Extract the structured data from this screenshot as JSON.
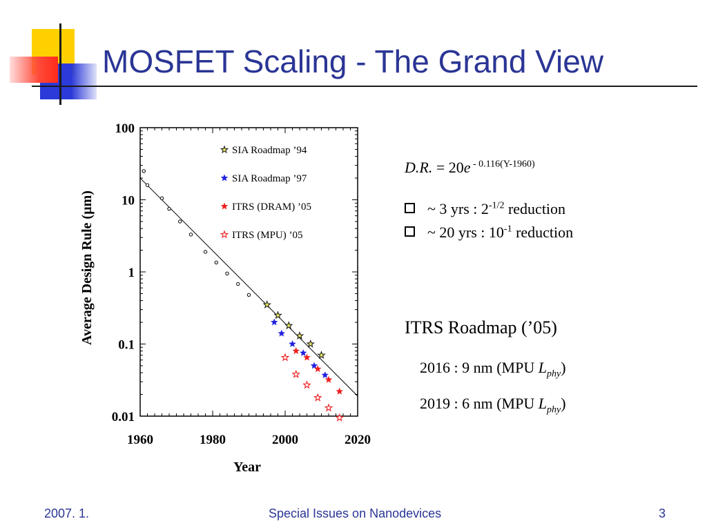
{
  "slide": {
    "title": "MOSFET Scaling - The Grand View",
    "accent_colors": {
      "title": "#2a3595",
      "yellow": "#ffd000",
      "red": "#ff2a1a",
      "blue": "#2b3ad8"
    }
  },
  "formula": {
    "lhs": "D.R.",
    "mid": " = 20",
    "e": "e",
    "exponent": " - 0.116(Y-1960)"
  },
  "bullets": [
    {
      "icon": "checkbox-bullet-icon",
      "pre": "~ 3 yrs :  2",
      "sup": "-1/2",
      "post": " reduction"
    },
    {
      "icon": "checkbox-bullet-icon",
      "pre": "~ 20 yrs :  10",
      "sup": "-1",
      "post": " reduction"
    }
  ],
  "itrs": {
    "heading": "ITRS Roadmap (’05)",
    "lines": [
      {
        "pre": "2016 :   9 nm (MPU ",
        "L": "L",
        "sub": "phy",
        "post": ")"
      },
      {
        "pre": "2019 :   6 nm (MPU ",
        "L": "L",
        "sub": "phy",
        "post": ")"
      }
    ]
  },
  "footer": {
    "date": "2007. 1.",
    "center": "Special Issues on Nanodevices",
    "page": "3"
  },
  "chart_data": {
    "type": "scatter",
    "title": "",
    "xlabel": "Year",
    "ylabel": "Average Design Rule (µm)",
    "xlim": [
      1960,
      2020
    ],
    "ylim": [
      0.01,
      100
    ],
    "yscale": "log",
    "x_ticks": [
      "1960",
      "1980",
      "2000",
      "2020"
    ],
    "y_ticks": [
      "100",
      "10",
      "1",
      "0.1",
      "0.01"
    ],
    "legend_position": "top-right",
    "series": [
      {
        "name": "",
        "marker": "circle",
        "color": "#000000",
        "x": [
          1961,
          1962,
          1966,
          1968,
          1971,
          1974,
          1978,
          1981,
          1984,
          1987,
          1990
        ],
        "y": [
          25,
          16,
          10.5,
          7.5,
          5,
          3.3,
          1.9,
          1.35,
          0.95,
          0.68,
          0.48
        ]
      },
      {
        "name": "SIA Roadmap ’94",
        "marker": "star-open-yellow",
        "color": "#c8c800",
        "x": [
          1995,
          1998,
          2001,
          2004,
          2007,
          2010
        ],
        "y": [
          0.35,
          0.25,
          0.18,
          0.13,
          0.1,
          0.07
        ]
      },
      {
        "name": "SIA Roadmap ’97",
        "marker": "star-filled",
        "color": "#1f1fe0",
        "x": [
          1997,
          1999,
          2002,
          2005,
          2008,
          2011
        ],
        "y": [
          0.2,
          0.14,
          0.1,
          0.075,
          0.05,
          0.037
        ]
      },
      {
        "name": "ITRS (DRAM) ’05",
        "marker": "star-filled",
        "color": "#ee1c1c",
        "x": [
          2003,
          2006,
          2009,
          2012,
          2015
        ],
        "y": [
          0.08,
          0.065,
          0.045,
          0.032,
          0.022
        ]
      },
      {
        "name": "ITRS (MPU) ’05",
        "marker": "star-open",
        "color": "#ee1c1c",
        "x": [
          2000,
          2003,
          2006,
          2009,
          2012,
          2015
        ],
        "y": [
          0.065,
          0.038,
          0.027,
          0.018,
          0.013,
          0.0095
        ]
      }
    ],
    "fit_line": {
      "label": "D.R. = 20e^(-0.116(Y-1960))",
      "a": 20,
      "b": -0.116,
      "x0": 1960,
      "color": "#000000"
    }
  }
}
